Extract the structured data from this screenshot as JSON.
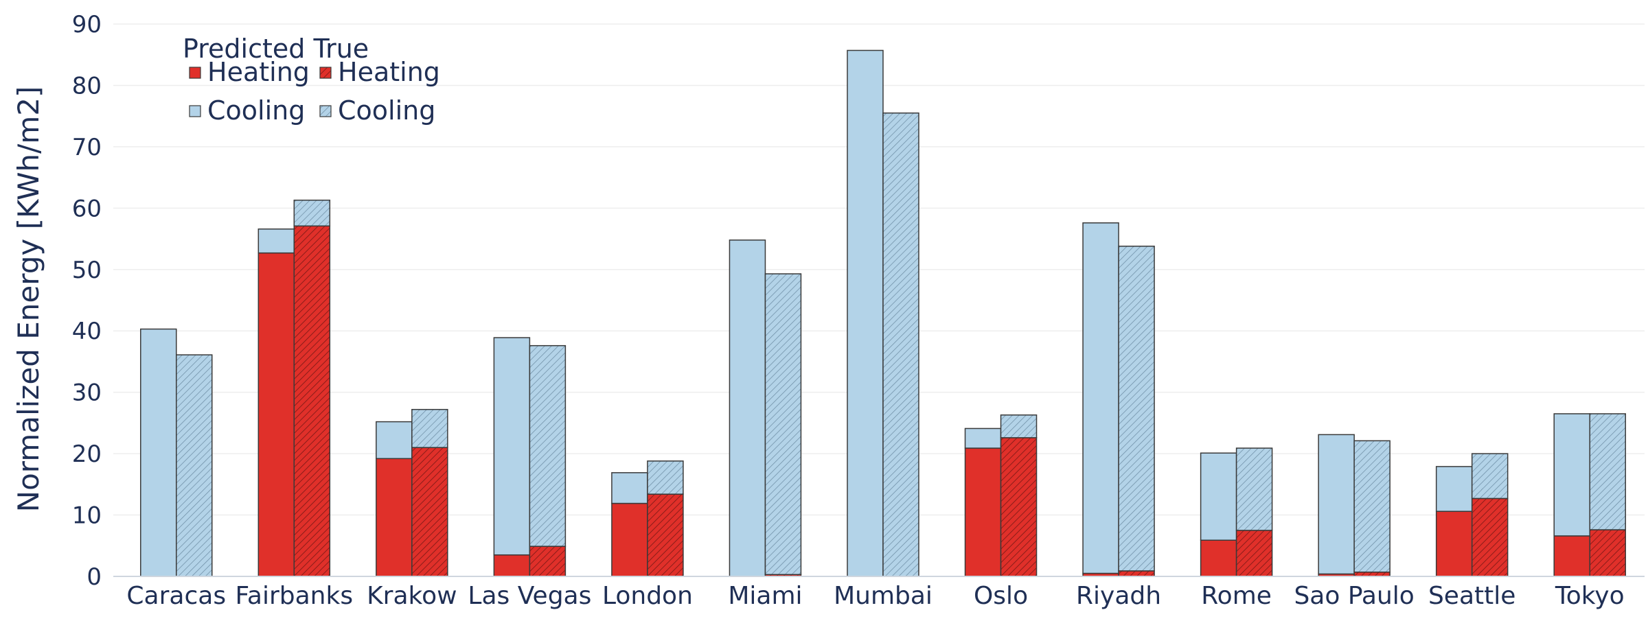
{
  "chart_data": {
    "type": "bar",
    "stacked": true,
    "title": "",
    "xlabel": "",
    "ylabel": "Normalized Energy [KWh/m2]",
    "ylim": [
      0,
      90
    ],
    "yticks": [
      0,
      10,
      20,
      30,
      40,
      50,
      60,
      70,
      80,
      90
    ],
    "grid": true,
    "legend": {
      "placement": "top-left",
      "title": "Predicted True",
      "entries": [
        {
          "group": "Predicted",
          "label": "Heating"
        },
        {
          "group": "True",
          "label": "Heating"
        },
        {
          "group": "Predicted",
          "label": "Cooling"
        },
        {
          "group": "True",
          "label": "Cooling"
        }
      ]
    },
    "colors": {
      "heating": "#e0302a",
      "cooling": "#b3d3e8",
      "edge": "#3a3a3a",
      "grid": "#eeeeee",
      "text": "#1f2f55"
    },
    "categories": [
      "Caracas",
      "Fairbanks",
      "Krakow",
      "Las Vegas",
      "London",
      "Miami",
      "Mumbai",
      "Oslo",
      "Riyadh",
      "Rome",
      "Sao Paulo",
      "Seattle",
      "Tokyo"
    ],
    "series": [
      {
        "name": "Predicted Heating",
        "group": "Predicted",
        "component": "heating",
        "values": [
          0,
          52.7,
          19.2,
          3.5,
          11.9,
          0,
          0,
          20.9,
          0.5,
          5.9,
          0.4,
          10.6,
          6.6
        ]
      },
      {
        "name": "Predicted Cooling",
        "group": "Predicted",
        "component": "cooling",
        "values": [
          40.3,
          3.9,
          6.0,
          35.4,
          5.0,
          54.8,
          85.7,
          3.2,
          57.1,
          14.2,
          22.7,
          7.3,
          19.9
        ]
      },
      {
        "name": "True Heating",
        "group": "True",
        "component": "heating",
        "values": [
          0,
          57.1,
          21.0,
          4.9,
          13.4,
          0.3,
          0,
          22.6,
          0.9,
          7.5,
          0.7,
          12.7,
          7.6
        ]
      },
      {
        "name": "True Cooling",
        "group": "True",
        "component": "cooling",
        "values": [
          36.1,
          4.2,
          6.2,
          32.7,
          5.4,
          49.0,
          75.5,
          3.7,
          52.9,
          13.4,
          21.4,
          7.3,
          18.9
        ]
      }
    ]
  }
}
